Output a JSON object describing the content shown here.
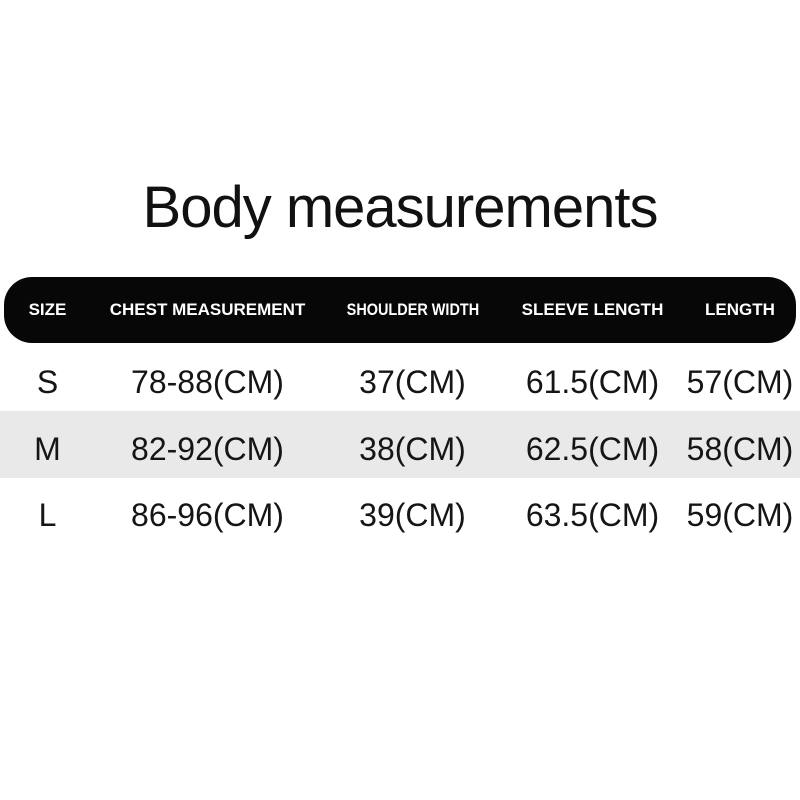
{
  "title": "Body measurements",
  "chart_data": {
    "type": "table",
    "title": "Body measurements",
    "columns": [
      "SIZE",
      "CHEST MEASUREMENT",
      "SHOULDER WIDTH",
      "SLEEVE LENGTH",
      "LENGTH"
    ],
    "rows": [
      [
        "S",
        "78-88(CM)",
        "37(CM)",
        "61.5(CM)",
        "57(CM)"
      ],
      [
        "M",
        "82-92(CM)",
        "38(CM)",
        "62.5(CM)",
        "58(CM)"
      ],
      [
        "L",
        "86-96(CM)",
        "39(CM)",
        "63.5(CM)",
        "59(CM)"
      ]
    ],
    "unit": "CM",
    "layout": {
      "header_style": "black-rounded-bar",
      "zebra_row_index": 1,
      "zebra_color": "#e9e9e9"
    }
  },
  "colors": {
    "background": "#ffffff",
    "header_bg": "#070707",
    "header_text": "#ffffff",
    "body_text": "#151515",
    "zebra": "#e9e9e9"
  }
}
